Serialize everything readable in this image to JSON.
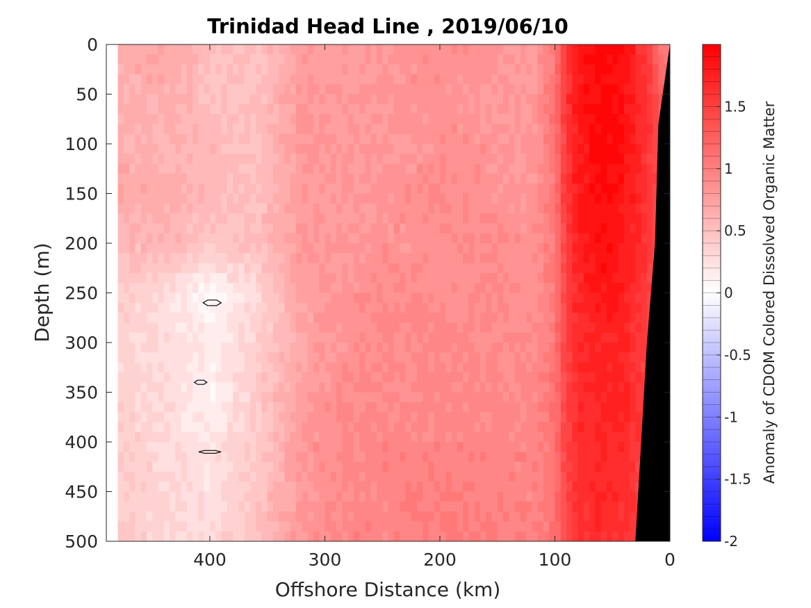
{
  "chart_data": {
    "type": "heatmap",
    "subtype": "filled-contour",
    "title": "Trinidad Head Line , 2019/06/10",
    "xlabel": "Offshore Distance (km)",
    "ylabel": "Depth (m)",
    "xlim": [
      490,
      0
    ],
    "ylim": [
      0,
      500
    ],
    "x_reversed": true,
    "y_reversed": true,
    "x_ticks": [
      400,
      300,
      200,
      100,
      0
    ],
    "y_ticks": [
      0,
      50,
      100,
      150,
      200,
      250,
      300,
      350,
      400,
      450,
      500
    ],
    "colorbar": {
      "label": "Anomaly of CDOM Colored Dissolved Organic Matter",
      "range": [
        -2,
        2
      ],
      "ticks": [
        1.5,
        1,
        0.5,
        0,
        -0.5,
        -1,
        -1.5,
        -2
      ],
      "levels": 40,
      "colormap": "blue-white-red",
      "low_color": "#0000ff",
      "mid_color": "#ffffff",
      "high_color": "#ff0000"
    },
    "data_extent_x": [
      480,
      0
    ],
    "bathymetry_color": "#000000",
    "bathymetry_edge": [
      [
        0,
        0
      ],
      [
        10,
        80
      ],
      [
        13,
        200
      ],
      [
        20,
        300
      ],
      [
        30,
        500
      ]
    ],
    "field": {
      "x": [
        480,
        440,
        400,
        360,
        320,
        280,
        240,
        200,
        160,
        120,
        100,
        90,
        80,
        60,
        40,
        20,
        5
      ],
      "y": [
        0,
        50,
        100,
        150,
        200,
        250,
        300,
        350,
        400,
        450,
        500
      ],
      "z": [
        [
          0.65,
          0.7,
          0.55,
          0.45,
          0.75,
          0.8,
          0.8,
          0.9,
          0.85,
          0.75,
          1.0,
          1.5,
          1.8,
          1.95,
          1.9,
          1.5,
          1.0
        ],
        [
          0.6,
          0.65,
          0.5,
          0.5,
          0.8,
          0.75,
          0.85,
          0.85,
          0.8,
          0.8,
          1.1,
          1.6,
          1.85,
          1.95,
          1.85,
          1.6,
          1.2
        ],
        [
          0.65,
          0.6,
          0.55,
          0.5,
          0.8,
          0.8,
          0.8,
          0.85,
          0.85,
          0.8,
          1.1,
          1.55,
          1.8,
          1.95,
          1.9,
          1.6,
          1.3
        ],
        [
          0.7,
          0.65,
          0.55,
          0.5,
          0.75,
          0.8,
          0.85,
          0.9,
          0.85,
          0.8,
          1.05,
          1.6,
          1.8,
          1.9,
          1.85,
          1.6,
          1.3
        ],
        [
          0.55,
          0.6,
          0.45,
          0.5,
          0.8,
          0.8,
          0.85,
          0.85,
          0.9,
          0.85,
          1.05,
          1.5,
          1.75,
          1.9,
          1.8,
          1.6,
          1.3
        ],
        [
          0.4,
          0.3,
          0.05,
          0.3,
          0.75,
          0.85,
          0.9,
          0.85,
          0.9,
          0.85,
          1.0,
          1.5,
          1.7,
          1.85,
          1.75,
          1.55,
          1.3
        ],
        [
          0.35,
          0.25,
          0.15,
          0.35,
          0.7,
          0.85,
          0.9,
          0.95,
          0.9,
          0.9,
          1.05,
          1.5,
          1.7,
          1.75,
          1.7,
          1.5,
          1.3
        ],
        [
          0.35,
          0.3,
          0.1,
          0.4,
          0.75,
          0.9,
          0.9,
          0.9,
          0.95,
          0.9,
          1.1,
          1.45,
          1.65,
          1.75,
          1.7,
          1.55,
          1.3
        ],
        [
          0.4,
          0.3,
          0.2,
          0.4,
          0.8,
          0.95,
          0.95,
          0.95,
          0.95,
          0.95,
          1.1,
          1.5,
          1.65,
          1.7,
          1.65,
          1.5,
          1.3
        ],
        [
          0.35,
          0.35,
          0.25,
          0.45,
          0.8,
          0.9,
          0.95,
          1.0,
          0.95,
          0.95,
          1.1,
          1.45,
          1.6,
          1.7,
          1.65,
          1.5,
          1.3
        ],
        [
          0.45,
          0.3,
          0.3,
          0.5,
          0.85,
          0.95,
          0.95,
          1.0,
          1.0,
          0.95,
          1.1,
          1.45,
          1.6,
          1.65,
          1.6,
          1.5,
          1.3
        ]
      ],
      "zero_contours": [
        [
          398,
          260
        ],
        [
          408,
          340
        ],
        [
          400,
          410
        ]
      ]
    }
  }
}
